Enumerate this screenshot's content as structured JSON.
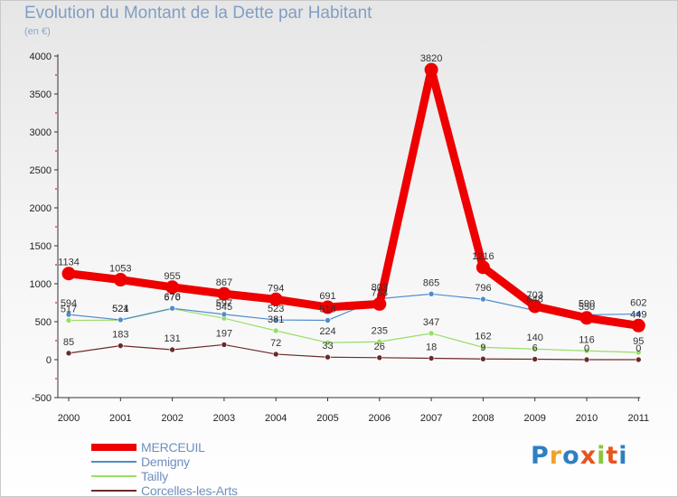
{
  "header": {
    "title": "Evolution du Montant de la Dette par Habitant",
    "unit": "(en €)"
  },
  "brand": {
    "letters": [
      "P",
      "r",
      "o",
      "x",
      "i",
      "t",
      "i"
    ],
    "colors": [
      "#2f7fc1",
      "#f0a22d",
      "#2f7fc1",
      "#e8541d",
      "#8cc43f",
      "#e8541d",
      "#2f7fc1"
    ]
  },
  "chart_data": {
    "type": "line",
    "title": "Evolution du Montant de la Dette par Habitant",
    "ylabel": "(en €)",
    "xlabel": "",
    "categories": [
      "2000",
      "2001",
      "2002",
      "2003",
      "2004",
      "2005",
      "2006",
      "2007",
      "2008",
      "2009",
      "2010",
      "2011"
    ],
    "ylim": [
      -500,
      4000
    ],
    "yticks": [
      -500,
      0,
      500,
      1000,
      1500,
      2000,
      2500,
      3000,
      3500,
      4000
    ],
    "grid": false,
    "legend_position": "bottom-left",
    "series": [
      {
        "name": "MERCEUIL",
        "color": "#ee0000",
        "values": [
          1134,
          1053,
          955,
          867,
          794,
          691,
          733,
          3820,
          1216,
          703,
          550,
          449
        ],
        "labels": [
          "1134",
          "1053",
          "955",
          "867",
          "794",
          "691",
          "733",
          "3820",
          "1216",
          "703",
          "550",
          "449"
        ]
      },
      {
        "name": "Demigny",
        "color": "#4f8ccc",
        "values": [
          594,
          524,
          676,
          597,
          523,
          518,
          803,
          865,
          796,
          648,
          590,
          602
        ],
        "labels": [
          "594",
          "524",
          "676",
          "597",
          "523",
          "518",
          "803",
          "865",
          "796",
          "648",
          "590",
          "602"
        ]
      },
      {
        "name": "Tailly",
        "color": "#99dd66",
        "values": [
          517,
          521,
          670,
          545,
          381,
          224,
          235,
          347,
          162,
          140,
          116,
          95
        ],
        "labels": [
          "517",
          "521",
          "670",
          "545",
          "381",
          "224",
          "235",
          "347",
          "162",
          "140",
          "116",
          "95"
        ]
      },
      {
        "name": "Corcelles-les-Arts",
        "color": "#6b2a2a",
        "values": [
          85,
          183,
          131,
          197,
          72,
          33,
          26,
          18,
          9,
          6,
          0,
          0
        ],
        "labels": [
          "85",
          "183",
          "131",
          "197",
          "72",
          "33",
          "26",
          "18",
          "9",
          "6",
          "0",
          "0"
        ]
      }
    ]
  }
}
